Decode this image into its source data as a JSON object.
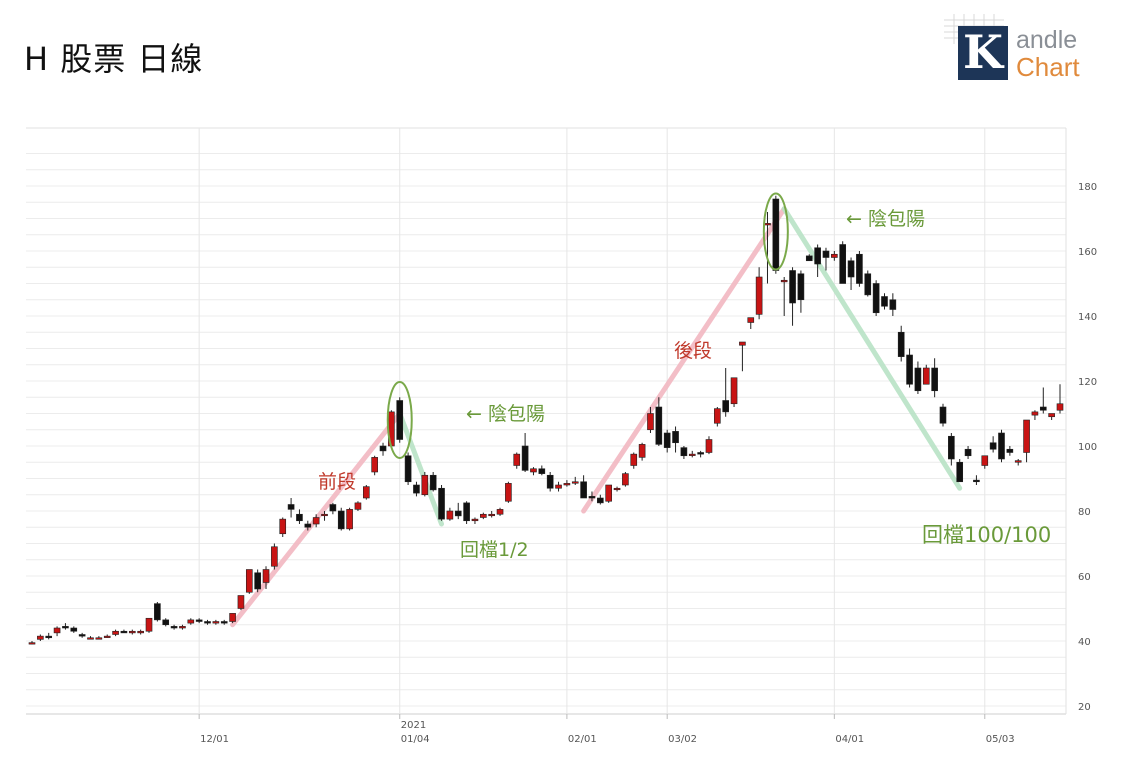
{
  "title": "H 股票 日線",
  "logo": {
    "word1": "andle",
    "word2": "Chart",
    "letter": "K"
  },
  "chart_data": {
    "type": "candlestick",
    "ylim": [
      20,
      190
    ],
    "y_ticks": [
      20,
      40,
      60,
      80,
      100,
      120,
      140,
      160,
      180
    ],
    "x_labels": [
      {
        "label": "12/01",
        "index": 20
      },
      {
        "label": "01/04",
        "index": 44,
        "year": "2021"
      },
      {
        "label": "02/01",
        "index": 64
      },
      {
        "label": "03/02",
        "index": 76
      },
      {
        "label": "04/01",
        "index": 96
      },
      {
        "label": "05/03",
        "index": 114
      }
    ],
    "candles": [
      [
        39.5,
        40.0,
        39.0,
        39.5
      ],
      [
        40.5,
        42.0,
        40.0,
        41.5
      ],
      [
        41.5,
        42.5,
        40.5,
        41.0
      ],
      [
        42.5,
        44.5,
        41.5,
        44.0
      ],
      [
        44.5,
        45.5,
        43.5,
        44.0
      ],
      [
        44.0,
        44.5,
        42.5,
        43.0
      ],
      [
        42.0,
        42.5,
        41.0,
        41.5
      ],
      [
        41.0,
        41.5,
        40.5,
        41.0
      ],
      [
        41.0,
        41.5,
        40.5,
        41.0
      ],
      [
        41.5,
        42.0,
        41.0,
        41.5
      ],
      [
        42.0,
        43.5,
        41.5,
        43.0
      ],
      [
        43.0,
        43.5,
        42.5,
        42.5
      ],
      [
        42.5,
        43.5,
        42.0,
        43.0
      ],
      [
        42.5,
        43.5,
        42.0,
        43.0
      ],
      [
        43.0,
        47.0,
        42.5,
        47.0
      ],
      [
        51.5,
        52.0,
        46.0,
        46.5
      ],
      [
        46.5,
        47.0,
        44.5,
        45.0
      ],
      [
        44.5,
        45.0,
        43.5,
        44.0
      ],
      [
        44.0,
        45.0,
        43.5,
        44.5
      ],
      [
        45.5,
        47.0,
        45.0,
        46.5
      ],
      [
        46.5,
        47.0,
        45.5,
        46.0
      ],
      [
        46.0,
        46.5,
        45.0,
        45.5
      ],
      [
        45.5,
        46.5,
        45.0,
        46.0
      ],
      [
        46.0,
        46.5,
        45.0,
        45.5
      ],
      [
        46.0,
        48.5,
        45.5,
        48.5
      ],
      [
        50.0,
        54.0,
        49.5,
        54.0
      ],
      [
        55.0,
        62.0,
        54.5,
        62.0
      ],
      [
        61.0,
        62.0,
        55.0,
        56.0
      ],
      [
        58.0,
        63.0,
        56.0,
        62.0
      ],
      [
        63.0,
        70.0,
        62.0,
        69.0
      ],
      [
        73.0,
        78.0,
        72.0,
        77.5
      ],
      [
        82.0,
        84.0,
        78.0,
        80.5
      ],
      [
        79.0,
        80.5,
        76.0,
        77.0
      ],
      [
        76.0,
        77.0,
        74.0,
        75.0
      ],
      [
        76.0,
        79.0,
        75.0,
        78.0
      ],
      [
        79.0,
        80.0,
        77.0,
        79.0
      ],
      [
        82.0,
        82.5,
        79.0,
        80.0
      ],
      [
        80.0,
        81.0,
        74.0,
        74.5
      ],
      [
        74.5,
        81.0,
        74.0,
        80.5
      ],
      [
        80.5,
        83.0,
        80.0,
        82.5
      ],
      [
        84.0,
        88.0,
        83.5,
        87.5
      ],
      [
        92.0,
        97.0,
        91.0,
        96.5
      ],
      [
        100.0,
        101.0,
        97.0,
        98.5
      ],
      [
        100.0,
        111.0,
        99.5,
        110.5
      ],
      [
        114.0,
        115.0,
        101.0,
        102.0
      ],
      [
        97.0,
        98.0,
        88.0,
        89.0
      ],
      [
        88.0,
        89.0,
        84.5,
        85.5
      ],
      [
        85.0,
        92.0,
        84.5,
        91.0
      ],
      [
        91.0,
        92.0,
        86.0,
        86.5
      ],
      [
        87.0,
        88.0,
        77.0,
        77.5
      ],
      [
        77.5,
        81.0,
        77.0,
        80.0
      ],
      [
        80.0,
        82.5,
        77.5,
        78.5
      ],
      [
        82.5,
        83.0,
        76.0,
        77.0
      ],
      [
        77.0,
        78.0,
        76.0,
        77.5
      ],
      [
        78.0,
        79.5,
        77.5,
        79.0
      ],
      [
        79.0,
        80.0,
        78.0,
        79.0
      ],
      [
        79.0,
        81.0,
        78.5,
        80.5
      ],
      [
        83.0,
        89.0,
        82.5,
        88.5
      ],
      [
        94.0,
        98.0,
        93.0,
        97.5
      ],
      [
        100.0,
        104.0,
        92.0,
        92.5
      ],
      [
        92.0,
        93.5,
        91.0,
        93.0
      ],
      [
        93.0,
        94.0,
        91.0,
        91.5
      ],
      [
        91.0,
        92.0,
        86.0,
        87.0
      ],
      [
        87.0,
        89.0,
        86.0,
        88.0
      ],
      [
        88.0,
        89.5,
        87.5,
        88.5
      ],
      [
        89.0,
        90.5,
        88.0,
        89.0
      ],
      [
        89.0,
        91.0,
        85.0,
        84.0
      ],
      [
        84.5,
        86.0,
        83.0,
        84.0
      ],
      [
        84.0,
        85.0,
        82.0,
        82.5
      ],
      [
        83.0,
        88.0,
        82.5,
        88.0
      ],
      [
        87.0,
        87.5,
        86.0,
        87.0
      ],
      [
        88.0,
        92.0,
        87.5,
        91.5
      ],
      [
        94.0,
        98.0,
        93.0,
        97.5
      ],
      [
        96.5,
        101.0,
        95.5,
        100.5
      ],
      [
        105.0,
        112.0,
        104.0,
        110.0
      ],
      [
        112.0,
        115.0,
        100.0,
        100.5
      ],
      [
        104.0,
        105.0,
        98.0,
        99.5
      ],
      [
        104.5,
        106.0,
        98.0,
        101.0
      ],
      [
        99.5,
        100.0,
        96.0,
        97.0
      ],
      [
        97.5,
        98.5,
        96.5,
        97.5
      ],
      [
        98.0,
        98.5,
        96.5,
        97.5
      ],
      [
        98.0,
        103.0,
        97.5,
        102.0
      ],
      [
        107.0,
        112.0,
        106.0,
        111.5
      ],
      [
        114.0,
        124.0,
        109.0,
        110.5
      ],
      [
        113.0,
        121.0,
        112.0,
        121.0
      ],
      [
        131.0,
        132.0,
        123.0,
        132.0
      ],
      [
        138.0,
        139.0,
        136.0,
        139.5
      ],
      [
        140.5,
        155.0,
        139.0,
        152.0
      ],
      [
        168.0,
        172.0,
        150.0,
        168.5
      ],
      [
        176.0,
        177.0,
        153.0,
        154.0
      ],
      [
        150.5,
        152.0,
        140.0,
        151.0
      ],
      [
        154.0,
        155.0,
        137.0,
        144.0
      ],
      [
        153.0,
        154.0,
        141.0,
        145.0
      ],
      [
        158.5,
        159.0,
        157.0,
        157.0
      ],
      [
        161.0,
        162.0,
        152.0,
        156.0
      ],
      [
        160.0,
        161.0,
        154.0,
        158.0
      ],
      [
        158.0,
        160.0,
        157.0,
        159.0
      ],
      [
        162.0,
        163.0,
        150.0,
        150.0
      ],
      [
        157.0,
        158.0,
        148.0,
        152.0
      ],
      [
        159.0,
        160.0,
        149.0,
        150.0
      ],
      [
        153.0,
        154.0,
        146.0,
        146.5
      ],
      [
        150.0,
        151.0,
        140.0,
        141.0
      ],
      [
        146.0,
        147.0,
        142.0,
        143.0
      ],
      [
        145.0,
        147.0,
        140.0,
        142.0
      ],
      [
        135.0,
        137.0,
        126.0,
        127.5
      ],
      [
        128.0,
        130.0,
        118.0,
        119.0
      ],
      [
        124.0,
        126.0,
        116.0,
        117.0
      ],
      [
        119.0,
        125.0,
        119.0,
        124.0
      ],
      [
        124.0,
        127.0,
        115.0,
        117.0
      ],
      [
        112.0,
        113.0,
        106.0,
        107.0
      ],
      [
        103.0,
        104.0,
        94.0,
        96.0
      ],
      [
        95.0,
        96.0,
        89.0,
        89.0
      ],
      [
        99.0,
        100.0,
        96.0,
        97.0
      ],
      [
        89.5,
        91.0,
        88.0,
        89.0
      ],
      [
        94.0,
        97.0,
        93.0,
        97.0
      ],
      [
        101.0,
        103.0,
        98.0,
        99.0
      ],
      [
        104.0,
        105.0,
        95.0,
        96.0
      ],
      [
        99.0,
        100.0,
        97.0,
        98.0
      ],
      [
        95.0,
        96.0,
        94.0,
        95.5
      ],
      [
        98.0,
        108.0,
        95.0,
        108.0
      ],
      [
        109.5,
        111.0,
        108.0,
        110.5
      ],
      [
        112.0,
        118.0,
        110.0,
        111.0
      ],
      [
        109.0,
        110.0,
        108.0,
        110.0
      ],
      [
        111.0,
        119.0,
        110.0,
        113.0
      ]
    ],
    "annotations": [
      {
        "text": "前段",
        "color": "#c0392b"
      },
      {
        "text": "← 陰包陽",
        "color": "#6a9a3a"
      },
      {
        "text": "回檔1/2",
        "color": "#6a9a3a"
      },
      {
        "text": "後段",
        "color": "#c0392b"
      },
      {
        "text": "← 陰包陽",
        "color": "#6a9a3a"
      },
      {
        "text": "回檔100/100",
        "color": "#6a9a3a"
      }
    ],
    "trend_lines": [
      {
        "from": [
          24,
          45
        ],
        "to": [
          44,
          110
        ],
        "color": "#f2b8c2"
      },
      {
        "from": [
          44,
          110
        ],
        "to": [
          49,
          76
        ],
        "color": "#b9e3c6"
      },
      {
        "from": [
          66,
          80
        ],
        "to": [
          90,
          173
        ],
        "color": "#f2b8c2"
      },
      {
        "from": [
          90,
          173
        ],
        "to": [
          111,
          87
        ],
        "color": "#b9e3c6"
      }
    ],
    "highlight_ellipses": [
      {
        "center_index": 44,
        "center_value": 108
      },
      {
        "center_index": 89,
        "center_value": 166
      }
    ],
    "colors": {
      "up": "#c81414",
      "down": "#111111",
      "grid": "#e6e6e6",
      "axis_text": "#555555"
    }
  }
}
